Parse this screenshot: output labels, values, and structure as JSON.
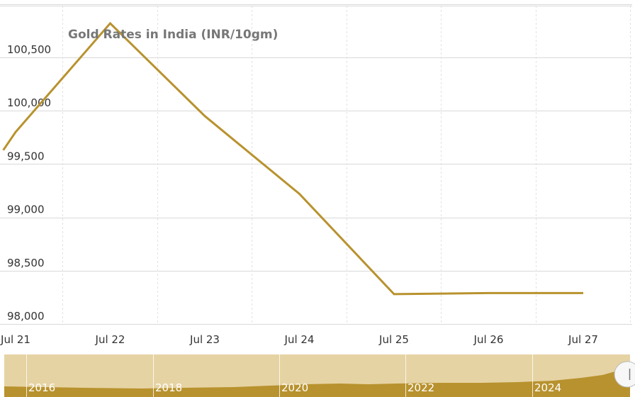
{
  "chart_data": {
    "type": "line",
    "title": "Gold Rates in India (INR/10gm)",
    "x": [
      "Jul 21",
      "Jul 21",
      "Jul 22",
      "Jul 23",
      "Jul 24",
      "Jul 25",
      "Jul 26",
      "Jul 27"
    ],
    "x_numeric": [
      20.87,
      21.0,
      22.0,
      23.0,
      24.0,
      25.0,
      26.0,
      27.0
    ],
    "series": [
      {
        "values": [
          99630,
          99800,
          100820,
          99950,
          99220,
          98280,
          98290,
          98290
        ]
      }
    ],
    "xticks": [
      "Jul 21",
      "Jul 22",
      "Jul 23",
      "Jul 24",
      "Jul 25",
      "Jul 26",
      "Jul 27"
    ],
    "yticks": [
      "98,000",
      "98,500",
      "99,000",
      "99,500",
      "100,000",
      "100,500"
    ],
    "xlim": [
      20.87,
      27.5
    ],
    "ylim": [
      98000,
      101000
    ],
    "line_color": "#B8922E",
    "grid": true,
    "navigator": {
      "labels": [
        "2016",
        "2018",
        "2020",
        "2022",
        "2024"
      ],
      "fill_color": "#B8922E",
      "background_color": "#E6D3A3"
    }
  }
}
